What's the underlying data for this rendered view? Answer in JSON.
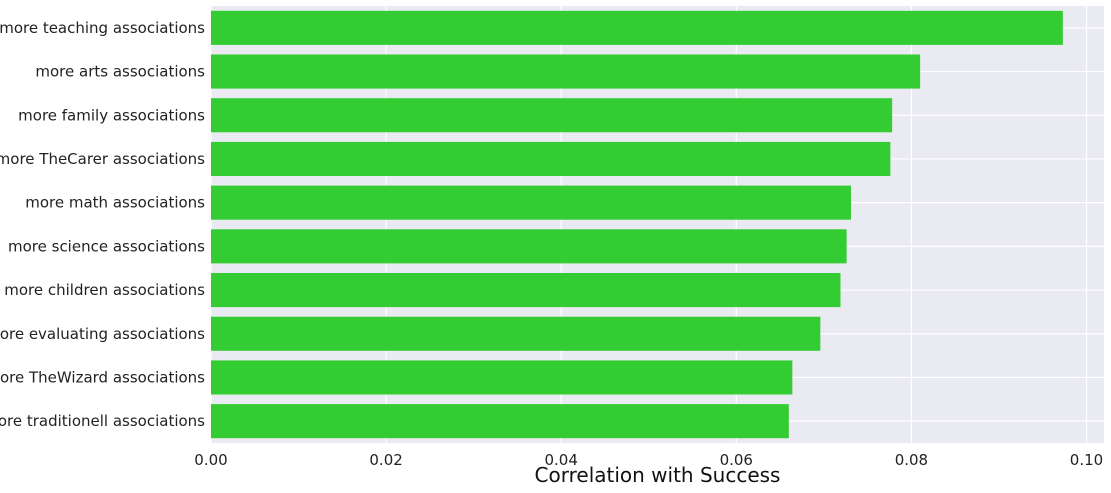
{
  "chart_data": {
    "type": "bar",
    "orientation": "horizontal",
    "title": "",
    "xlabel": "Correlation with Success",
    "ylabel": "",
    "xlim": [
      0,
      0.102
    ],
    "xticks": [
      0.0,
      0.02,
      0.04,
      0.06,
      0.08,
      0.1
    ],
    "xtick_labels": [
      "0.00",
      "0.02",
      "0.04",
      "0.06",
      "0.08",
      "0.10"
    ],
    "grid": true,
    "categories": [
      "more teaching associations",
      "more arts associations",
      "more family associations",
      "more TheCarer associations",
      "more math associations",
      "more science associations",
      "more children associations",
      "more evaluating associations",
      "more TheWizard associations",
      "more traditionell associations"
    ],
    "values": [
      0.0973,
      0.081,
      0.0778,
      0.0776,
      0.0731,
      0.0726,
      0.0719,
      0.0696,
      0.0664,
      0.066
    ],
    "colors": {
      "bar": "#33cc33",
      "background": "#eaeaf2",
      "grid": "#ffffff"
    }
  }
}
